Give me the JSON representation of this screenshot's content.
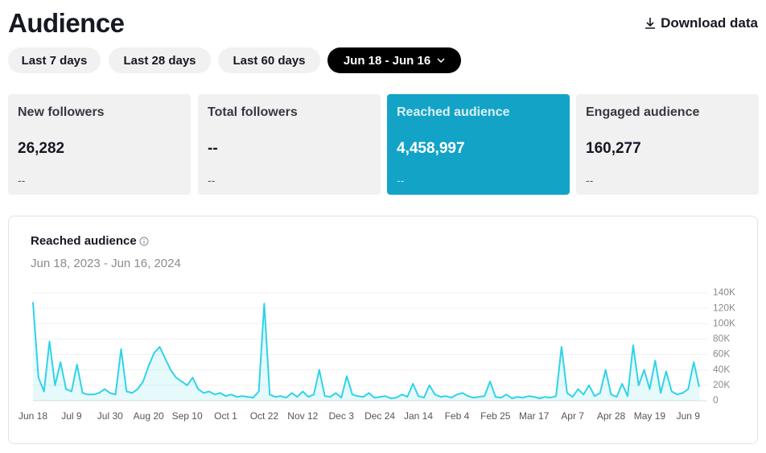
{
  "header": {
    "title": "Audience",
    "download": "Download data"
  },
  "filters": [
    "Last 7 days",
    "Last 28 days",
    "Last 60 days",
    "Jun 18 - Jun 16"
  ],
  "cards": [
    {
      "label": "New followers",
      "value": "26,282",
      "change": "--"
    },
    {
      "label": "Total followers",
      "value": "--",
      "change": "--"
    },
    {
      "label": "Reached audience",
      "value": "4,458,997",
      "change": "--"
    },
    {
      "label": "Engaged audience",
      "value": "160,277",
      "change": "--"
    }
  ],
  "chart_data": {
    "type": "line",
    "title": "Reached audience",
    "subtitle": "Jun 18, 2023 - Jun 16, 2024",
    "categories": [
      "Jun 18",
      null,
      null,
      null,
      null,
      null,
      null,
      "Jul 9",
      null,
      null,
      null,
      null,
      null,
      null,
      "Jul 30",
      null,
      null,
      null,
      null,
      null,
      null,
      "Aug 20",
      null,
      null,
      null,
      null,
      null,
      null,
      "Sep 10",
      null,
      null,
      null,
      null,
      null,
      null,
      "Oct 1",
      null,
      null,
      null,
      null,
      null,
      null,
      "Oct 22",
      null,
      null,
      null,
      null,
      null,
      null,
      "Nov 12",
      null,
      null,
      null,
      null,
      null,
      null,
      "Dec 3",
      null,
      null,
      null,
      null,
      null,
      null,
      "Dec 24",
      null,
      null,
      null,
      null,
      null,
      null,
      "Jan 14",
      null,
      null,
      null,
      null,
      null,
      null,
      "Feb 4",
      null,
      null,
      null,
      null,
      null,
      null,
      "Feb 25",
      null,
      null,
      null,
      null,
      null,
      null,
      "Mar 17",
      null,
      null,
      null,
      null,
      null,
      null,
      "Apr 7",
      null,
      null,
      null,
      null,
      null,
      null,
      "Apr 28",
      null,
      null,
      null,
      null,
      null,
      null,
      "May 19",
      null,
      null,
      null,
      null,
      null,
      null,
      "Jun 9",
      null,
      null
    ],
    "values": [
      128000,
      30000,
      12000,
      77000,
      20000,
      50000,
      15000,
      12000,
      47000,
      10000,
      8000,
      8000,
      10000,
      15000,
      10000,
      8000,
      67000,
      12000,
      10000,
      15000,
      25000,
      45000,
      62000,
      70000,
      55000,
      40000,
      30000,
      25000,
      20000,
      30000,
      15000,
      10000,
      12000,
      8000,
      10000,
      6000,
      8000,
      5000,
      6000,
      5000,
      4000,
      12000,
      126000,
      8000,
      5000,
      6000,
      4000,
      10000,
      5000,
      12000,
      5000,
      8000,
      40000,
      6000,
      5000,
      10000,
      4000,
      32000,
      8000,
      6000,
      5000,
      10000,
      4000,
      5000,
      6000,
      3000,
      4000,
      8000,
      5000,
      22000,
      6000,
      4000,
      20000,
      8000,
      5000,
      6000,
      4000,
      8000,
      10000,
      6000,
      4000,
      5000,
      6000,
      25000,
      5000,
      4000,
      8000,
      3000,
      5000,
      4000,
      6000,
      5000,
      3000,
      5000,
      4000,
      6000,
      70000,
      10000,
      5000,
      15000,
      8000,
      20000,
      6000,
      10000,
      40000,
      8000,
      5000,
      22000,
      6000,
      72000,
      20000,
      40000,
      15000,
      52000,
      10000,
      38000,
      12000,
      8000,
      10000,
      15000,
      50000,
      18000
    ],
    "color": "#2fd3e8",
    "ylim": [
      0,
      140000
    ],
    "yticks": [
      0,
      {
        "value": 20000,
        "label": "20K"
      },
      {
        "value": 40000,
        "label": "40K"
      },
      {
        "value": 60000,
        "label": "60K"
      },
      {
        "value": 80000,
        "label": "80K"
      },
      {
        "value": 100000,
        "label": "100K"
      },
      {
        "value": 120000,
        "label": "120K"
      },
      {
        "value": 140000,
        "label": "140K"
      }
    ],
    "grid": true
  }
}
